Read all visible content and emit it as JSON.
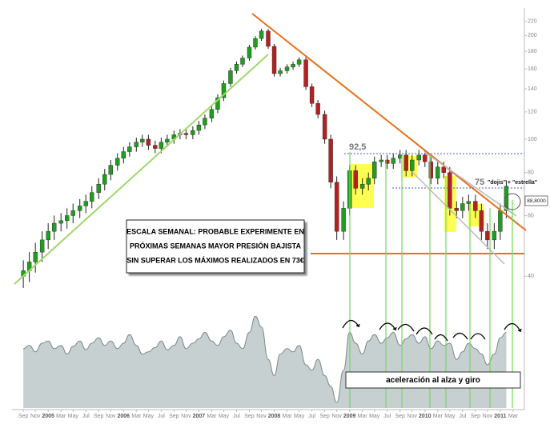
{
  "chart_data": [
    {
      "type": "candlestick",
      "x": [
        2004.67,
        2004.75,
        2004.83,
        2004.92,
        2005,
        2005.08,
        2005.17,
        2005.25,
        2005.33,
        2005.42,
        2005.5,
        2005.58,
        2005.67,
        2005.75,
        2005.83,
        2005.92,
        2006,
        2006.08,
        2006.17,
        2006.25,
        2006.33,
        2006.42,
        2006.5,
        2006.58,
        2006.67,
        2006.75,
        2006.83,
        2006.92,
        2007,
        2007.08,
        2007.17,
        2007.25,
        2007.33,
        2007.42,
        2007.5,
        2007.58,
        2007.67,
        2007.75,
        2007.83,
        2007.92,
        2008,
        2008.08,
        2008.17,
        2008.25,
        2008.33,
        2008.42,
        2008.5,
        2008.58,
        2008.67,
        2008.75,
        2008.83,
        2008.92,
        2009,
        2009.08,
        2009.17,
        2009.25,
        2009.33,
        2009.42,
        2009.5,
        2009.58,
        2009.67,
        2009.75,
        2009.83,
        2009.92,
        2010,
        2010.08,
        2010.17,
        2010.25,
        2010.33,
        2010.42,
        2010.5,
        2010.58,
        2010.67,
        2010.75,
        2010.83,
        2010.92,
        2011,
        2011.08
      ],
      "open": [
        40,
        41.5,
        44,
        47,
        51,
        54,
        57,
        58,
        60,
        62,
        64,
        66,
        70,
        74,
        79,
        84,
        88,
        92,
        95,
        98,
        100,
        96,
        94,
        98,
        100,
        103,
        104,
        103,
        106,
        110,
        115,
        122,
        132,
        145,
        158,
        165,
        172,
        185,
        196,
        206,
        186,
        155,
        158,
        162,
        165,
        170,
        142,
        127,
        118,
        100,
        75,
        54,
        63,
        81,
        72,
        74,
        77,
        86,
        87,
        85,
        88,
        90,
        81,
        87,
        90,
        86,
        77,
        83,
        80,
        63,
        62,
        65,
        66,
        62,
        54,
        51,
        54,
        62
      ],
      "high": [
        44.5,
        47,
        50,
        54,
        57,
        60,
        61,
        63,
        65,
        67,
        69,
        73,
        77,
        82,
        87,
        91,
        95,
        98,
        101,
        103,
        103,
        99,
        101,
        103,
        106,
        107,
        107,
        109,
        113,
        118,
        125,
        135,
        148,
        161,
        168,
        175,
        188,
        199,
        209,
        209,
        189,
        161,
        165,
        168,
        173,
        173,
        145,
        130,
        121,
        103,
        78,
        66,
        84,
        84,
        77,
        80,
        89,
        90,
        90,
        91,
        93,
        93,
        90,
        93,
        93,
        89,
        86,
        86,
        83,
        66,
        68,
        69,
        69,
        65,
        57,
        57,
        65,
        76
      ],
      "low": [
        37,
        38.5,
        41,
        44,
        48,
        51,
        54,
        55,
        57,
        59,
        61,
        63,
        67,
        71,
        76,
        81,
        85,
        89,
        92,
        95,
        93,
        91,
        91,
        95,
        97,
        100,
        100,
        100,
        103,
        107,
        112,
        119,
        129,
        142,
        155,
        162,
        169,
        182,
        193,
        183,
        152,
        152,
        155,
        159,
        162,
        139,
        124,
        115,
        97,
        72,
        51,
        51,
        60,
        69,
        69,
        71,
        74,
        83,
        82,
        82,
        85,
        78,
        78,
        84,
        83,
        74,
        74,
        77,
        60,
        59,
        59,
        62,
        59,
        51,
        48,
        48,
        51,
        59
      ],
      "close": [
        41.5,
        44,
        47,
        51,
        54,
        57,
        58,
        60,
        62,
        64,
        66,
        70,
        74,
        79,
        84,
        88,
        92,
        95,
        98,
        100,
        96,
        94,
        98,
        100,
        103,
        104,
        103,
        106,
        110,
        115,
        122,
        132,
        145,
        158,
        165,
        172,
        185,
        196,
        206,
        186,
        155,
        158,
        162,
        165,
        170,
        142,
        127,
        118,
        100,
        75,
        54,
        63,
        81,
        72,
        74,
        77,
        86,
        87,
        85,
        88,
        90,
        81,
        87,
        90,
        86,
        77,
        83,
        80,
        63,
        62,
        65,
        66,
        62,
        54,
        51,
        54,
        62,
        73
      ],
      "up_color": "#1e9e1e",
      "down_color": "#b22222",
      "log_scale": true,
      "ylim": [
        36,
        234
      ],
      "yticks": [
        40,
        60,
        80,
        100,
        120,
        140,
        160,
        180,
        200,
        220
      ],
      "xlim": [
        2004.52,
        2011.32
      ],
      "xticks": [
        {
          "value": 2004.67,
          "label": "Sep"
        },
        {
          "value": 2004.83,
          "label": "Nov"
        },
        2005,
        {
          "value": 2005.17,
          "label": "Mar"
        },
        {
          "value": 2005.33,
          "label": "May"
        },
        {
          "value": 2005.5,
          "label": "Jul"
        },
        {
          "value": 2005.67,
          "label": "Sep"
        },
        {
          "value": 2005.83,
          "label": "Nov"
        },
        2006,
        {
          "value": 2006.17,
          "label": "Mar"
        },
        {
          "value": 2006.33,
          "label": "May"
        },
        {
          "value": 2006.5,
          "label": "Jul"
        },
        {
          "value": 2006.67,
          "label": "Sep"
        },
        {
          "value": 2006.83,
          "label": "Nov"
        },
        2007,
        {
          "value": 2007.17,
          "label": "Mar"
        },
        {
          "value": 2007.33,
          "label": "May"
        },
        {
          "value": 2007.5,
          "label": "Jul"
        },
        {
          "value": 2007.67,
          "label": "Sep"
        },
        {
          "value": 2007.83,
          "label": "Nov"
        },
        2008,
        {
          "value": 2008.17,
          "label": "Mar"
        },
        {
          "value": 2008.33,
          "label": "May"
        },
        {
          "value": 2008.5,
          "label": "Jul"
        },
        {
          "value": 2008.67,
          "label": "Sep"
        },
        {
          "value": 2008.83,
          "label": "Nov"
        },
        2009,
        {
          "value": 2009.17,
          "label": "Mar"
        },
        {
          "value": 2009.33,
          "label": "May"
        },
        {
          "value": 2009.5,
          "label": "Jul"
        },
        {
          "value": 2009.67,
          "label": "Sep"
        },
        {
          "value": 2009.83,
          "label": "Nov"
        },
        2010,
        {
          "value": 2010.17,
          "label": "Mar"
        },
        {
          "value": 2010.33,
          "label": "May"
        },
        {
          "value": 2010.5,
          "label": "Jul"
        },
        {
          "value": 2010.67,
          "label": "Sep"
        },
        {
          "value": 2010.83,
          "label": "Nov"
        },
        2011,
        {
          "value": 2011.17,
          "label": "Mar"
        }
      ],
      "annotations": [
        "ESCALA SEMANAL: PROBABLE EXPERIMENTE EN",
        "PRÓXIMAS SEMANAS MAYOR PRESIÓN BAJISTA",
        "SIN SUPERAR LOS MÁXIMOS REALIZADOS EN 73€",
        "92,5",
        "75",
        "\"dojis\" + \"estrella\"",
        "88,8000"
      ]
    },
    {
      "type": "area",
      "values": [
        55,
        58,
        52,
        60,
        62,
        55,
        58,
        50,
        57,
        62,
        54,
        60,
        65,
        58,
        62,
        55,
        60,
        68,
        58,
        50,
        52,
        56,
        62,
        54,
        58,
        66,
        55,
        60,
        64,
        70,
        62,
        58,
        66,
        72,
        60,
        55,
        70,
        85,
        75,
        45,
        30,
        50,
        55,
        52,
        58,
        40,
        35,
        45,
        30,
        20,
        5,
        35,
        70,
        60,
        50,
        62,
        68,
        60,
        65,
        70,
        58,
        64,
        68,
        60,
        66,
        55,
        62,
        58,
        60,
        45,
        52,
        60,
        55,
        50,
        40,
        50,
        65,
        70
      ],
      "color": "#c6d0d0",
      "line_color": "#7e8a8a",
      "ylim": [
        0,
        100
      ],
      "annotations": [
        "aceleración al alza y giro"
      ]
    }
  ]
}
